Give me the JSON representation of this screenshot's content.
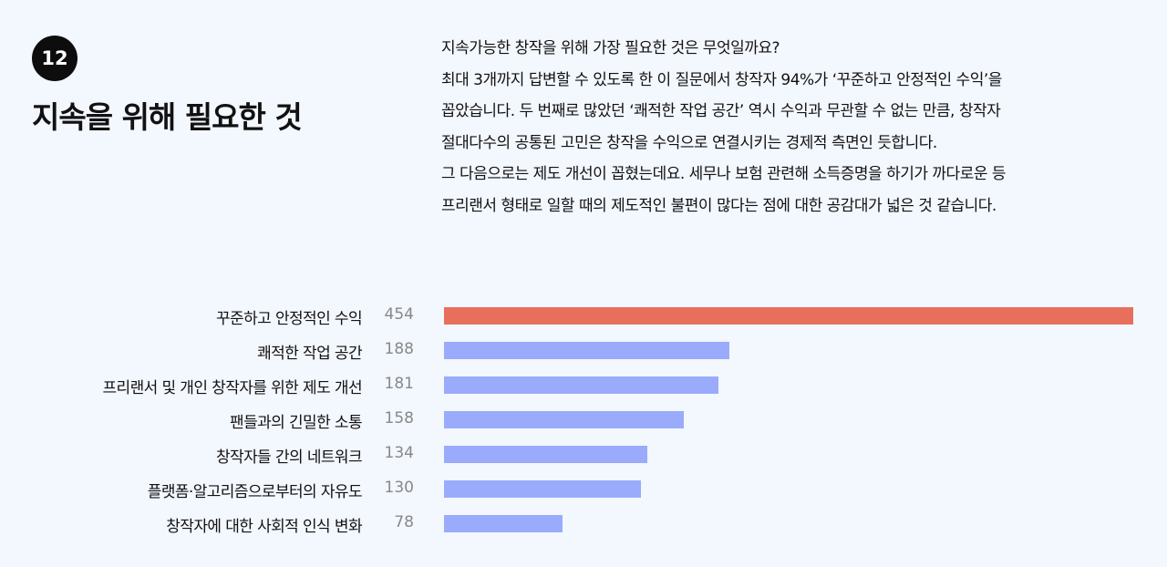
{
  "section": {
    "number": "12",
    "title": "지속을 위해 필요한 것"
  },
  "description": {
    "lines": [
      "지속가능한 창작을 위해 가장 필요한 것은 무엇일까요?",
      "최대 3개까지 답변할 수 있도록 한 이 질문에서 창작자 94%가 ‘꾸준하고 안정적인 수익’을",
      "꼽았습니다. 두 번째로 많았던 ‘쾌적한 작업 공간’ 역시 수익과 무관할 수 없는 만큼, 창작자",
      "절대다수의 공통된 고민은 창작을 수익으로 연결시키는 경제적 측면인 듯합니다.",
      "그 다음으로는 제도 개선이 꼽혔는데요. 세무나 보험 관련해 소득증명을 하기가 까다로운 등",
      "프리랜서 형태로 일할 때의 제도적인 불편이 많다는 점에 대한 공감대가 넓은 것 같습니다."
    ]
  },
  "colors": {
    "highlight": "#e76f5c",
    "default": "#9aabfb",
    "background": "#f3f7fe"
  },
  "chart_data": {
    "type": "bar",
    "orientation": "horizontal",
    "categories": [
      "꾸준하고 안정적인 수익",
      "쾌적한 작업 공간",
      "프리랜서 및 개인 창작자를 위한 제도 개선",
      "팬들과의 긴밀한 소통",
      "창작자들 간의 네트워크",
      "플랫폼·알고리즘으로부터의 자유도",
      "창작자에 대한 사회적 인식 변화"
    ],
    "values": [
      454,
      188,
      181,
      158,
      134,
      130,
      78
    ],
    "value_labels": [
      "454",
      "188",
      "181",
      "158",
      "134",
      "130",
      "78"
    ],
    "highlight_index": 0,
    "xlim": [
      0,
      454
    ],
    "grid": false,
    "legend": "none"
  }
}
